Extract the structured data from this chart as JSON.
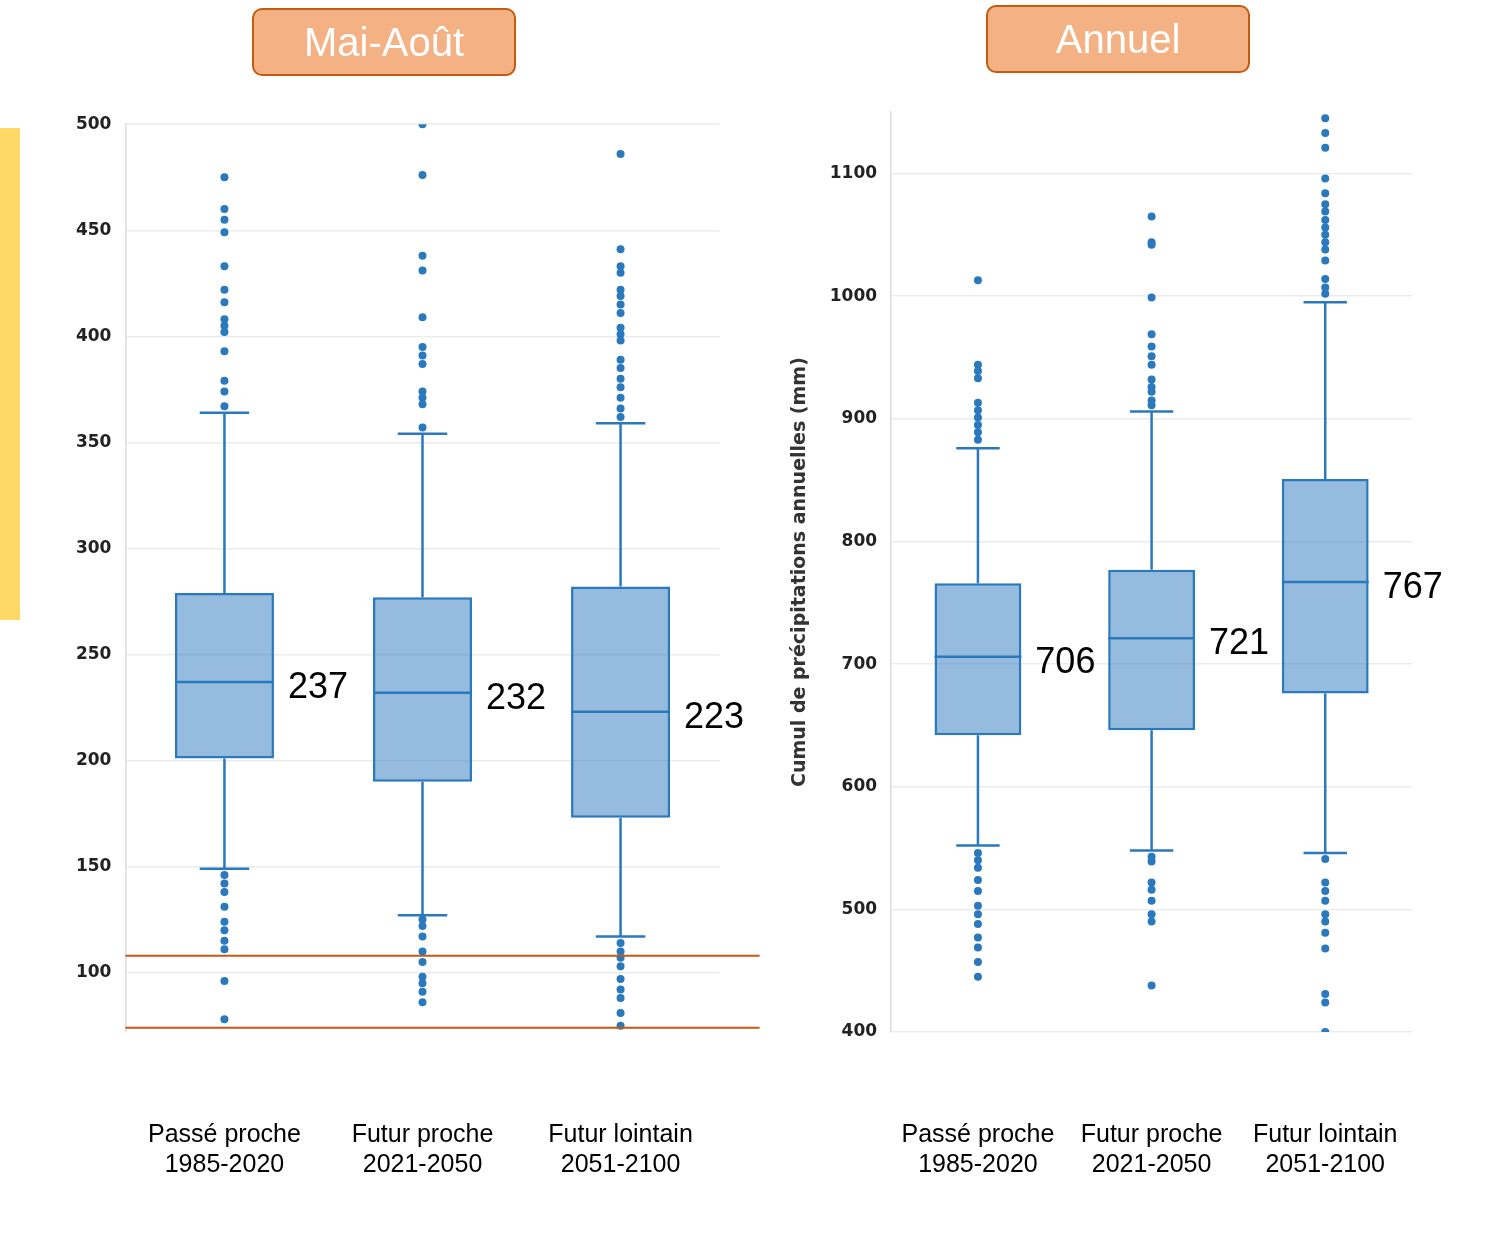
{
  "chart_data": [
    {
      "type": "box",
      "title": "Mai-Août",
      "categories": [
        "Passé proche\n1985-2020",
        "Futur proche\n2021-2050",
        "Futur lointain\n2051-2100"
      ],
      "color": "#2b79bd",
      "boxes": [
        {
          "low": 149,
          "q1": 201,
          "median": 237,
          "q3": 279,
          "high": 364,
          "outliers": [
            475,
            460,
            455,
            449,
            433,
            422,
            416,
            408,
            405,
            402,
            393,
            379,
            374,
            367,
            146,
            142,
            138,
            131,
            124,
            120,
            115,
            111,
            96,
            78
          ]
        },
        {
          "low": 127,
          "q1": 190,
          "median": 232,
          "q3": 277,
          "high": 354,
          "outliers": [
            500,
            476,
            438,
            431,
            409,
            395,
            391,
            387,
            374,
            371,
            368,
            357,
            125,
            122,
            117,
            110,
            105,
            98,
            95,
            91,
            86
          ]
        },
        {
          "low": 117,
          "q1": 173,
          "median": 223,
          "q3": 282,
          "high": 359,
          "outliers": [
            486,
            441,
            433,
            430,
            422,
            419,
            415,
            411,
            404,
            401,
            398,
            389,
            385,
            380,
            376,
            371,
            366,
            362,
            114,
            110,
            107,
            103,
            97,
            92,
            88,
            81,
            75
          ]
        }
      ],
      "ylim": [
        72,
        500
      ],
      "yticks": [
        100,
        150,
        200,
        250,
        300,
        350,
        400,
        450,
        500
      ],
      "grid": "y",
      "value_labels": [
        "237",
        "232",
        "223"
      ],
      "ref_lines": [
        {
          "axis": "y",
          "value": 108,
          "color": "#c55a11"
        },
        {
          "axis": "y",
          "value": 74,
          "color": "#c55a11"
        }
      ]
    },
    {
      "type": "box",
      "title": "Annuel",
      "ylabel": "Cumul de précipitations annuelles (mm)",
      "categories": [
        "Passé proche\n1985-2020",
        "Futur proche\n2021-2050",
        "Futur lointain\n2051-2100"
      ],
      "color": "#2b79bd",
      "boxes": [
        {
          "low": 552,
          "q1": 642,
          "median": 706,
          "q3": 766,
          "high": 876,
          "outliers": [
            1013,
            944,
            939,
            933,
            913,
            907,
            901,
            895,
            889,
            883,
            546,
            540,
            534,
            524,
            515,
            503,
            496,
            488,
            477,
            469,
            457,
            445
          ]
        },
        {
          "low": 548,
          "q1": 646,
          "median": 721,
          "q3": 777,
          "high": 906,
          "outliers": [
            1065,
            1044,
            1042,
            999,
            969,
            959,
            951,
            944,
            932,
            926,
            922,
            915,
            911,
            543,
            539,
            522,
            516,
            507,
            496,
            490,
            438
          ]
        },
        {
          "low": 546,
          "q1": 676,
          "median": 767,
          "q3": 851,
          "high": 995,
          "outliers": [
            1145,
            1133,
            1121,
            1096,
            1084,
            1075,
            1069,
            1062,
            1056,
            1050,
            1044,
            1038,
            1029,
            1014,
            1007,
            1002,
            541,
            522,
            515,
            507,
            496,
            490,
            481,
            468,
            431,
            424,
            400
          ]
        }
      ],
      "ylim": [
        400,
        1150
      ],
      "yticks": [
        400,
        500,
        600,
        700,
        800,
        900,
        1000,
        1100
      ],
      "grid": "y",
      "value_labels": [
        "706",
        "721",
        "767"
      ]
    }
  ]
}
